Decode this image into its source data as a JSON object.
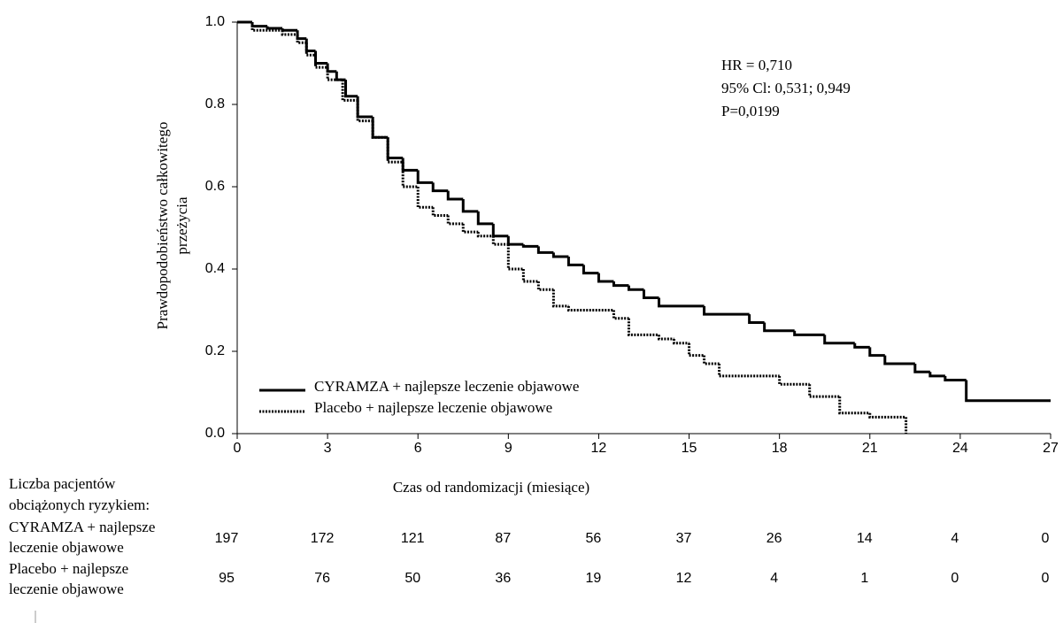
{
  "chart_data": {
    "type": "line",
    "step": true,
    "xlabel": "Czas od randomizacji (miesiące)",
    "ylabel": [
      "Prawdopodobieństwo całkowitego",
      "przeżycia"
    ],
    "xlim": [
      0,
      27
    ],
    "xticks": [
      0,
      3,
      6,
      9,
      12,
      15,
      18,
      21,
      24,
      27
    ],
    "ylim": [
      0,
      1
    ],
    "yticks": [
      {
        "value": 0,
        "label": "0.0"
      },
      0.2,
      0.4,
      0.6,
      0.8,
      {
        "value": 1,
        "label": "1.0"
      }
    ],
    "annotations": [
      "HR = 0,710",
      "95% Cl: 0,531; 0,949",
      "P=0,0199"
    ],
    "legend": "lower left",
    "series": [
      {
        "name": "CYRAMZA + najlepsze leczenie objawowe",
        "color": "#000000",
        "linestyle": "solid",
        "x": [
          0,
          0.5,
          1,
          1.5,
          2,
          2.3,
          2.6,
          3,
          3.3,
          3.6,
          4,
          4.5,
          5,
          5.5,
          6,
          6.5,
          7,
          7.5,
          8,
          8.5,
          9,
          9.5,
          10,
          10.5,
          11,
          11.5,
          12,
          12.5,
          13,
          13.5,
          14,
          15.5,
          17,
          17.5,
          18.5,
          19.5,
          20.5,
          21,
          21.5,
          22.5,
          23,
          23.5,
          24.2,
          27
        ],
        "values": [
          1.0,
          0.99,
          0.985,
          0.98,
          0.96,
          0.93,
          0.9,
          0.88,
          0.86,
          0.82,
          0.77,
          0.72,
          0.67,
          0.64,
          0.61,
          0.59,
          0.57,
          0.54,
          0.51,
          0.48,
          0.46,
          0.455,
          0.44,
          0.43,
          0.41,
          0.39,
          0.37,
          0.36,
          0.35,
          0.33,
          0.31,
          0.29,
          0.27,
          0.25,
          0.24,
          0.22,
          0.21,
          0.19,
          0.17,
          0.15,
          0.14,
          0.13,
          0.08,
          0.08
        ]
      },
      {
        "name": "Placebo + najlepsze leczenie objawowe",
        "color": "#000000",
        "linestyle": "dotted",
        "x": [
          0,
          0.5,
          1.5,
          2,
          2.3,
          2.6,
          3,
          3.5,
          4,
          4.5,
          5,
          5.5,
          6,
          6.5,
          7,
          7.5,
          8,
          8.5,
          9,
          9.5,
          10,
          10.5,
          11,
          12.5,
          13,
          14,
          14.5,
          15,
          15.5,
          16,
          18,
          19,
          20,
          21,
          22.2
        ],
        "values": [
          1.0,
          0.98,
          0.97,
          0.95,
          0.92,
          0.89,
          0.86,
          0.81,
          0.76,
          0.72,
          0.66,
          0.6,
          0.55,
          0.53,
          0.51,
          0.49,
          0.48,
          0.46,
          0.4,
          0.37,
          0.35,
          0.31,
          0.3,
          0.28,
          0.24,
          0.23,
          0.22,
          0.19,
          0.17,
          0.14,
          0.12,
          0.09,
          0.05,
          0.04,
          0.0
        ]
      }
    ],
    "risk_table": {
      "title": [
        "Liczba pacjentów",
        "obciążonych ryzykiem:"
      ],
      "rows": [
        {
          "label": [
            "CYRAMZA + najlepsze",
            "leczenie objawowe"
          ],
          "values": [
            197,
            172,
            121,
            87,
            56,
            37,
            26,
            14,
            4,
            0
          ]
        },
        {
          "label": [
            "Placebo + najlepsze",
            "leczenie objawowe"
          ],
          "values": [
            95,
            76,
            50,
            36,
            19,
            12,
            4,
            1,
            0,
            0
          ]
        }
      ]
    }
  }
}
